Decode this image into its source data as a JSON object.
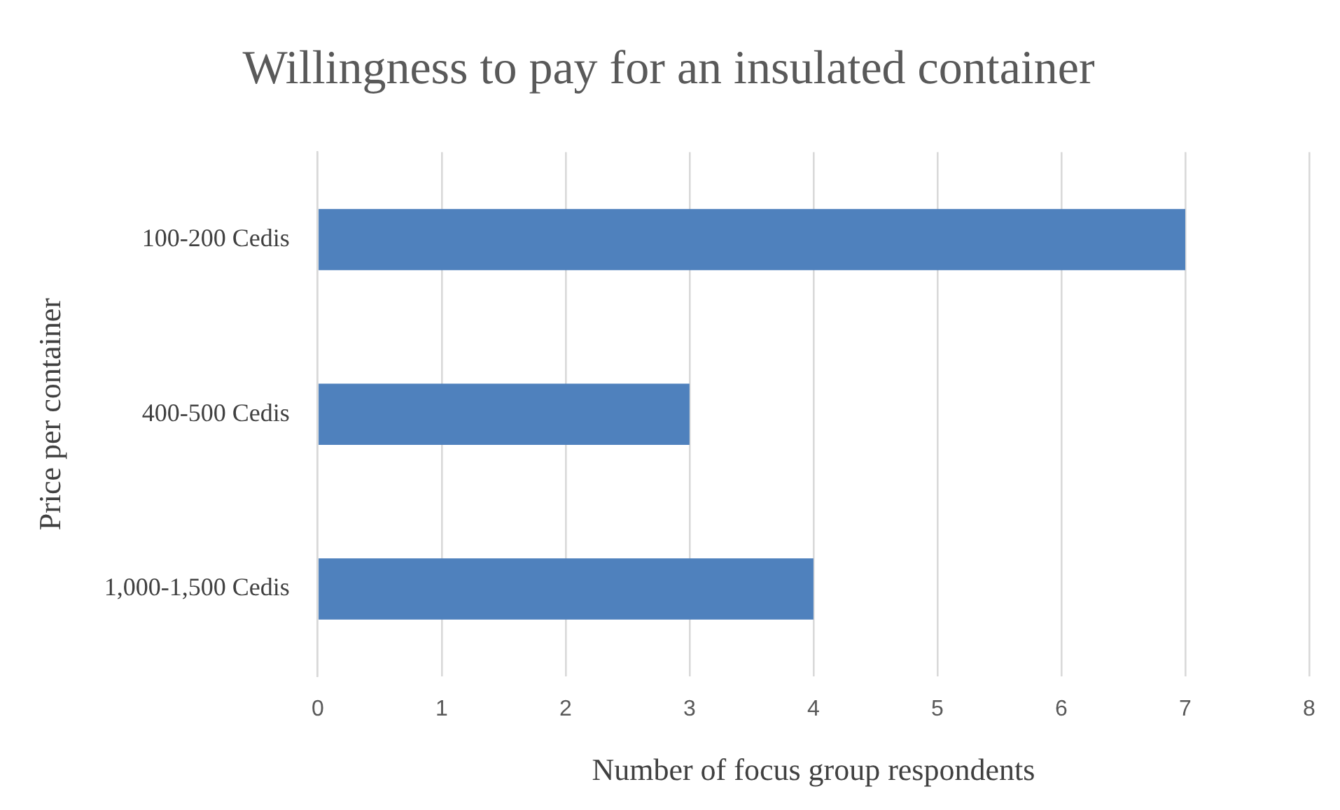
{
  "chart_data": {
    "type": "bar",
    "orientation": "horizontal",
    "title": "Willingness to pay for an insulated container",
    "xlabel": "Number of focus group respondents",
    "ylabel": "Price per container",
    "categories": [
      "100-200 Cedis",
      "400-500 Cedis",
      "1,000-1,500 Cedis"
    ],
    "values": [
      7,
      3,
      4
    ],
    "color": "#4f81bd",
    "xlim": [
      0,
      8
    ],
    "xticks": [
      0,
      1,
      2,
      3,
      4,
      5,
      6,
      7,
      8
    ],
    "grid": "x",
    "legend": false
  }
}
